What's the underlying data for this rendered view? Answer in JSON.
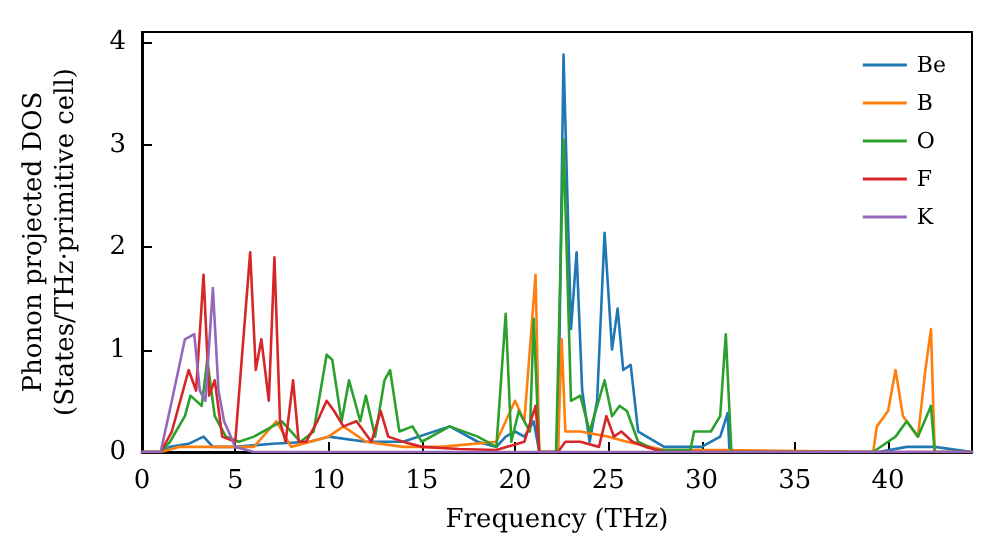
{
  "chart_data": {
    "type": "line",
    "xlabel": "Frequency (THz)",
    "ylabel": "Phonon projected DOS\n(States/THz·primitive cell)",
    "xlim": [
      0,
      44.5
    ],
    "ylim": [
      0,
      4.1
    ],
    "xticks": [
      0,
      5,
      10,
      15,
      20,
      25,
      30,
      35,
      40
    ],
    "yticks": [
      0,
      1,
      2,
      3,
      4
    ],
    "grid": false,
    "legend": "top right",
    "marker": "none",
    "line_style": "solid",
    "series": [
      {
        "name": "Be",
        "color": "#1f77b4",
        "x": [
          0,
          1,
          1.5,
          2.5,
          3.3,
          3.8,
          5,
          7,
          9,
          10,
          12,
          14,
          16.5,
          18,
          19,
          19.5,
          20,
          20.5,
          21,
          21.3,
          22.3,
          22.6,
          23,
          23.3,
          23.6,
          24,
          24.4,
          24.8,
          25.2,
          25.5,
          25.8,
          26.2,
          26.6,
          28,
          30,
          31,
          31.4,
          31.5,
          39.5,
          41,
          42.5,
          44.5
        ],
        "values": [
          0,
          0,
          0.05,
          0.08,
          0.15,
          0.05,
          0.05,
          0.08,
          0.1,
          0.15,
          0.1,
          0.1,
          0.25,
          0.1,
          0.05,
          0.15,
          0.2,
          0.15,
          0.3,
          0,
          0,
          3.88,
          1.2,
          1.95,
          0.6,
          0.1,
          0.5,
          2.14,
          1.0,
          1.4,
          0.8,
          0.85,
          0.2,
          0.05,
          0.05,
          0.15,
          0.38,
          0,
          0,
          0.05,
          0.05,
          0
        ]
      },
      {
        "name": "B",
        "color": "#ff7f0e",
        "x": [
          0,
          1,
          2,
          4,
          6,
          7.2,
          8,
          10,
          10.8,
          12,
          14,
          16,
          19,
          20,
          20.5,
          21.1,
          21.3,
          22.3,
          22.5,
          22.7,
          23.5,
          25,
          26,
          28,
          31,
          39.2,
          39.4,
          40,
          40.4,
          40.8,
          41.6,
          42,
          42.3,
          42.5,
          44.5
        ],
        "values": [
          0,
          0,
          0.05,
          0.05,
          0.05,
          0.3,
          0.05,
          0.15,
          0.25,
          0.1,
          0.05,
          0.05,
          0.1,
          0.5,
          0.3,
          1.73,
          0,
          0,
          1.1,
          0.2,
          0.2,
          0.15,
          0.1,
          0.02,
          0.02,
          0,
          0.25,
          0.4,
          0.8,
          0.35,
          0.15,
          0.8,
          1.2,
          0,
          0
        ]
      },
      {
        "name": "O",
        "color": "#2ca02c",
        "x": [
          0,
          1,
          1.5,
          2.3,
          2.6,
          3.2,
          3.5,
          3.9,
          4.5,
          5.2,
          6,
          7,
          7.5,
          8.5,
          9.2,
          9.9,
          10.2,
          10.7,
          11.1,
          11.7,
          12,
          12.5,
          13,
          13.3,
          13.8,
          14.5,
          15,
          16.5,
          18,
          19,
          19.5,
          19.8,
          20.2,
          20.8,
          21,
          21.3,
          22.2,
          22.6,
          23,
          23.5,
          24,
          24.8,
          25.2,
          25.6,
          26,
          26.6,
          27.5,
          29.4,
          29.6,
          30.5,
          31,
          31.3,
          31.6,
          39.2,
          40,
          40.4,
          41,
          41.6,
          42.3,
          42.5,
          44.5
        ],
        "values": [
          0,
          0,
          0.1,
          0.35,
          0.55,
          0.45,
          0.9,
          0.35,
          0.15,
          0.1,
          0.15,
          0.25,
          0.3,
          0.1,
          0.2,
          0.95,
          0.9,
          0.3,
          0.7,
          0.3,
          0.55,
          0.15,
          0.7,
          0.8,
          0.2,
          0.25,
          0.1,
          0.25,
          0.15,
          0.05,
          1.35,
          0.1,
          0.4,
          0.2,
          1.3,
          0,
          0,
          3.05,
          0.5,
          0.55,
          0.2,
          0.7,
          0.35,
          0.45,
          0.4,
          0.1,
          0.02,
          0.02,
          0.2,
          0.2,
          0.35,
          1.15,
          0,
          0,
          0.1,
          0.15,
          0.3,
          0.15,
          0.45,
          0,
          0
        ]
      },
      {
        "name": "F",
        "color": "#d62728",
        "x": [
          0,
          1,
          1.6,
          2.2,
          2.5,
          2.9,
          3.3,
          3.6,
          3.9,
          4.3,
          5,
          5.8,
          6.1,
          6.4,
          6.8,
          7.1,
          7.4,
          7.7,
          8.1,
          8.4,
          8.8,
          9.4,
          9.9,
          10.3,
          10.8,
          11.5,
          12.3,
          12.8,
          13.2,
          14,
          15,
          17,
          19,
          20.5,
          21.1,
          21.3,
          22.3,
          22.7,
          23.5,
          24.5,
          24.9,
          25.3,
          25.7,
          26.3,
          27,
          28,
          44.5
        ],
        "values": [
          0,
          0,
          0.2,
          0.6,
          0.8,
          0.6,
          1.73,
          0.55,
          0.7,
          0.15,
          0.1,
          1.95,
          0.8,
          1.1,
          0.5,
          1.9,
          0.3,
          0.1,
          0.7,
          0.1,
          0.1,
          0.3,
          0.5,
          0.4,
          0.25,
          0.3,
          0.1,
          0.4,
          0.15,
          0.1,
          0.05,
          0.03,
          0.02,
          0.1,
          0.45,
          0,
          0,
          0.1,
          0.1,
          0.05,
          0.35,
          0.15,
          0.2,
          0.1,
          0.05,
          0,
          0
        ]
      },
      {
        "name": "K",
        "color": "#9467bd",
        "x": [
          0,
          1,
          1.6,
          2.3,
          2.8,
          3.1,
          3.4,
          3.8,
          4.1,
          4.4,
          5,
          6,
          10,
          44.5
        ],
        "values": [
          0,
          0,
          0.5,
          1.1,
          1.15,
          0.6,
          0.5,
          1.6,
          0.6,
          0.3,
          0.05,
          0,
          0,
          0
        ]
      }
    ]
  }
}
